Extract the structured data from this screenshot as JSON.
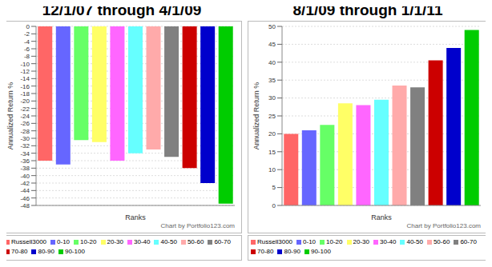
{
  "chart_data": [
    {
      "type": "bar",
      "title": "12/1/07 through 4/1/09",
      "x_label": "Ranks",
      "y_label": "Annualized Return %",
      "categories": [
        "Russell3000",
        "0-10",
        "10-20",
        "20-30",
        "30-40",
        "40-50",
        "50-60",
        "60-70",
        "70-80",
        "80-90",
        "90-100"
      ],
      "values": [
        -36,
        -37,
        -30.5,
        -31,
        -36,
        -34,
        -33,
        -35,
        -38,
        -42,
        -47.5
      ],
      "colors": [
        "#ff6666",
        "#6666ff",
        "#66ff66",
        "#ffff66",
        "#ff66ff",
        "#66ffff",
        "#ffaaaa",
        "#808080",
        "#cc0000",
        "#0000cc",
        "#00cc00"
      ],
      "ylim": [
        -48,
        0
      ],
      "yticks": [
        -48,
        -46,
        -44,
        -42,
        -40,
        -38,
        -36,
        -34,
        -32,
        -30,
        -28,
        -26,
        -24,
        -22,
        -20,
        -18,
        -16,
        -14,
        -12,
        -10,
        -8,
        -6,
        -4,
        -2,
        0
      ],
      "grid": true,
      "legend": "bottom",
      "tick_labels": "y",
      "annotations": [
        "Chart by Portfolio123.com"
      ]
    },
    {
      "type": "bar",
      "title": "8/1/09 through 1/1/11",
      "x_label": "Ranks",
      "y_label": "Annualized Return %",
      "categories": [
        "Russell3000",
        "0-10",
        "10-20",
        "20-30",
        "30-40",
        "40-50",
        "50-60",
        "60-70",
        "70-80",
        "80-90",
        "90-100"
      ],
      "values": [
        20,
        21,
        22.5,
        28.5,
        28,
        29.5,
        33.5,
        33,
        40.5,
        44,
        49
      ],
      "colors": [
        "#ff6666",
        "#6666ff",
        "#66ff66",
        "#ffff66",
        "#ff66ff",
        "#66ffff",
        "#ffaaaa",
        "#808080",
        "#cc0000",
        "#0000cc",
        "#00cc00"
      ],
      "ylim": [
        0,
        50
      ],
      "yticks": [
        0,
        5,
        10,
        15,
        20,
        25,
        30,
        35,
        40,
        45,
        50
      ],
      "grid": true,
      "legend": "bottom",
      "tick_labels": "y",
      "annotations": [
        "Chart by Portfolio123.com"
      ]
    }
  ]
}
